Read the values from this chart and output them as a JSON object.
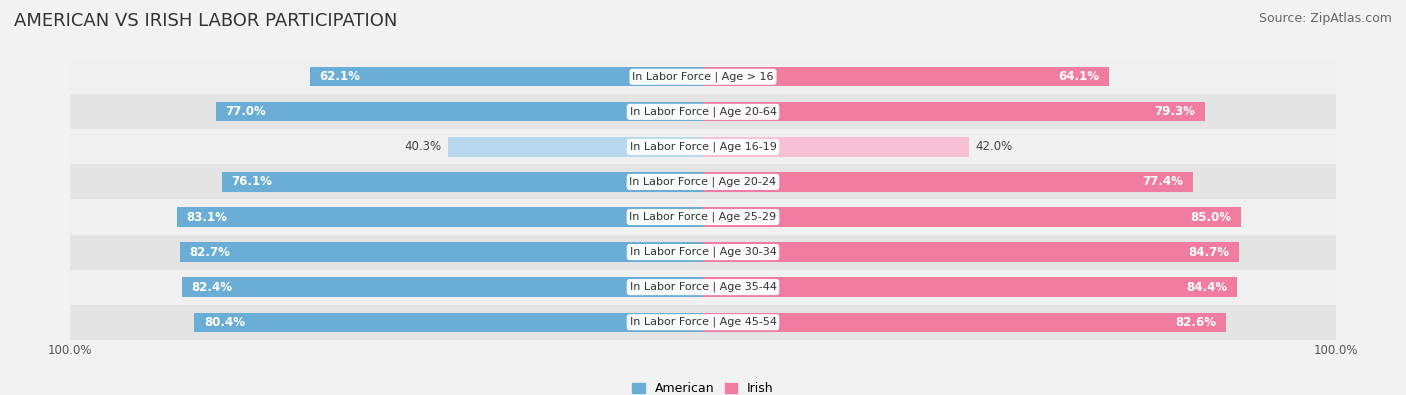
{
  "title": "AMERICAN VS IRISH LABOR PARTICIPATION",
  "source": "Source: ZipAtlas.com",
  "categories": [
    "In Labor Force | Age > 16",
    "In Labor Force | Age 20-64",
    "In Labor Force | Age 16-19",
    "In Labor Force | Age 20-24",
    "In Labor Force | Age 25-29",
    "In Labor Force | Age 30-34",
    "In Labor Force | Age 35-44",
    "In Labor Force | Age 45-54"
  ],
  "american_values": [
    62.1,
    77.0,
    40.3,
    76.1,
    83.1,
    82.7,
    82.4,
    80.4
  ],
  "irish_values": [
    64.1,
    79.3,
    42.0,
    77.4,
    85.0,
    84.7,
    84.4,
    82.6
  ],
  "american_color": "#6aaed6",
  "american_color_light": "#b8d8ee",
  "irish_color": "#f07ca0",
  "irish_color_light": "#f8c0d4",
  "row_bg_odd": "#f0f0f0",
  "row_bg_even": "#e4e4e4",
  "max_value": 100.0,
  "axis_label": "100.0%",
  "title_fontsize": 13,
  "source_fontsize": 9,
  "value_fontsize": 8.5,
  "category_fontsize": 8,
  "legend_fontsize": 9,
  "bar_height": 0.55,
  "figsize": [
    14.06,
    3.95
  ],
  "dpi": 100,
  "light_row_index": 2
}
